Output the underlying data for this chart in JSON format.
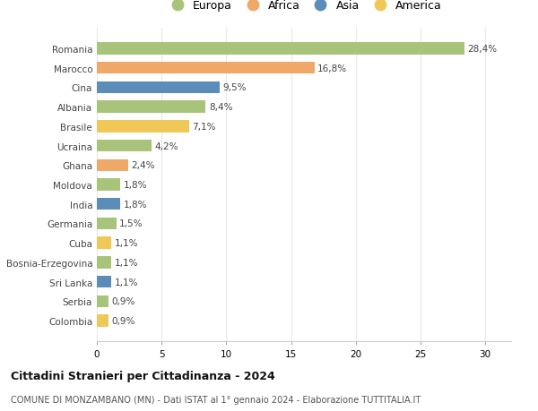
{
  "countries": [
    "Romania",
    "Marocco",
    "Cina",
    "Albania",
    "Brasile",
    "Ucraina",
    "Ghana",
    "Moldova",
    "India",
    "Germania",
    "Cuba",
    "Bosnia-Erzegovina",
    "Sri Lanka",
    "Serbia",
    "Colombia"
  ],
  "values": [
    28.4,
    16.8,
    9.5,
    8.4,
    7.1,
    4.2,
    2.4,
    1.8,
    1.8,
    1.5,
    1.1,
    1.1,
    1.1,
    0.9,
    0.9
  ],
  "labels": [
    "28,4%",
    "16,8%",
    "9,5%",
    "8,4%",
    "7,1%",
    "4,2%",
    "2,4%",
    "1,8%",
    "1,8%",
    "1,5%",
    "1,1%",
    "1,1%",
    "1,1%",
    "0,9%",
    "0,9%"
  ],
  "continents": [
    "Europa",
    "Africa",
    "Asia",
    "Europa",
    "America",
    "Europa",
    "Africa",
    "Europa",
    "Asia",
    "Europa",
    "America",
    "Europa",
    "Asia",
    "Europa",
    "America"
  ],
  "continent_colors": {
    "Europa": "#a8c47a",
    "Africa": "#f0a868",
    "Asia": "#5b8db8",
    "America": "#f0c858"
  },
  "legend_order": [
    "Europa",
    "Africa",
    "Asia",
    "America"
  ],
  "title": "Cittadini Stranieri per Cittadinanza - 2024",
  "subtitle": "COMUNE DI MONZAMBANO (MN) - Dati ISTAT al 1° gennaio 2024 - Elaborazione TUTTITALIA.IT",
  "xlim": [
    0,
    32
  ],
  "xticks": [
    0,
    5,
    10,
    15,
    20,
    25,
    30
  ],
  "background_color": "#ffffff",
  "grid_color": "#e8e8e8",
  "bar_height": 0.62,
  "label_fontsize": 7.5,
  "tick_fontsize": 7.5,
  "legend_fontsize": 9,
  "title_fontsize": 9,
  "subtitle_fontsize": 7
}
